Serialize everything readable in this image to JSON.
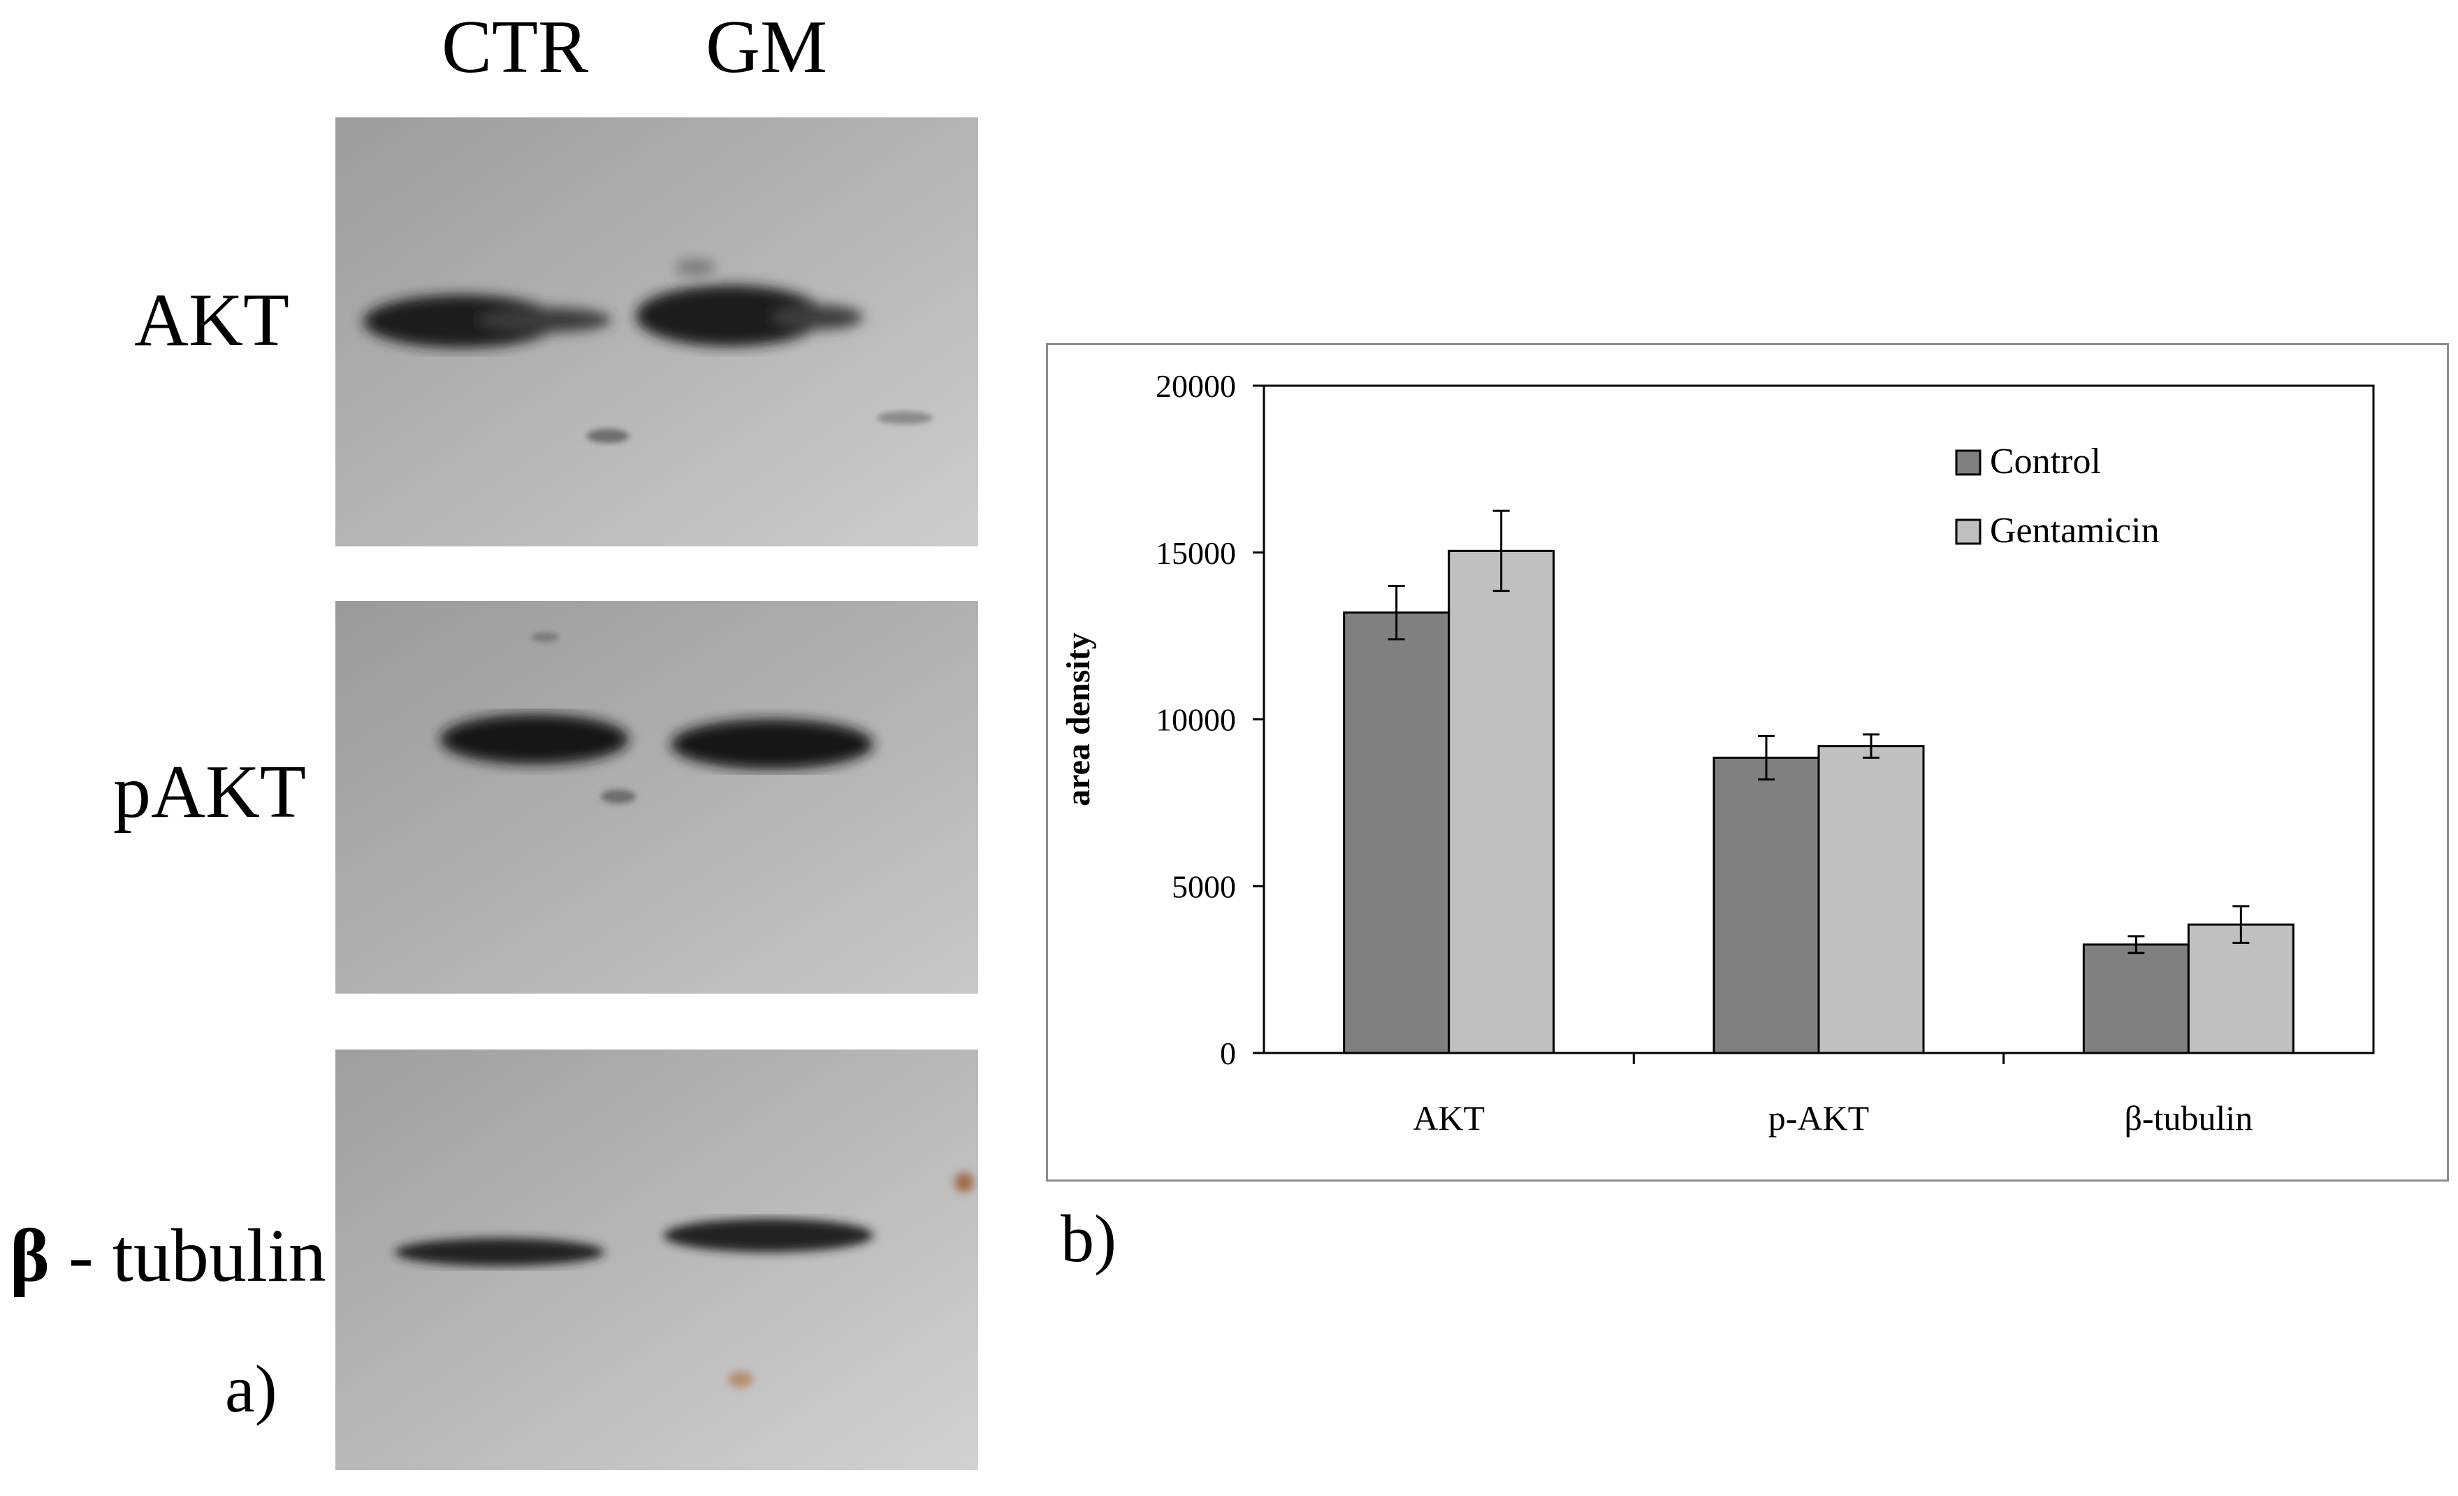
{
  "panel_a": {
    "lanes": [
      "CTR",
      "GM"
    ],
    "rows": [
      {
        "prefix": "",
        "label": "AKT"
      },
      {
        "prefix": "",
        "label": "pAKT"
      },
      {
        "prefix": "β",
        "label": " - tubulin"
      }
    ],
    "letter": "a)"
  },
  "panel_b": {
    "letter": "b)"
  },
  "chart_data": {
    "type": "bar",
    "title": "",
    "xlabel": "",
    "ylabel": "area density",
    "categories": [
      "AKT",
      "p-AKT",
      "β-tubulin"
    ],
    "ylim": [
      0,
      20000
    ],
    "yticks": [
      0,
      5000,
      10000,
      15000,
      20000
    ],
    "grid": false,
    "legend_position": "top-right",
    "series": [
      {
        "name": "Control",
        "color": "#808080",
        "values": [
          13200,
          8850,
          3250
        ],
        "errors": [
          800,
          650,
          250
        ]
      },
      {
        "name": "Gentamicin",
        "color": "#c0c0c0",
        "values": [
          15050,
          9200,
          3850
        ],
        "errors": [
          1200,
          350,
          550
        ]
      }
    ]
  }
}
